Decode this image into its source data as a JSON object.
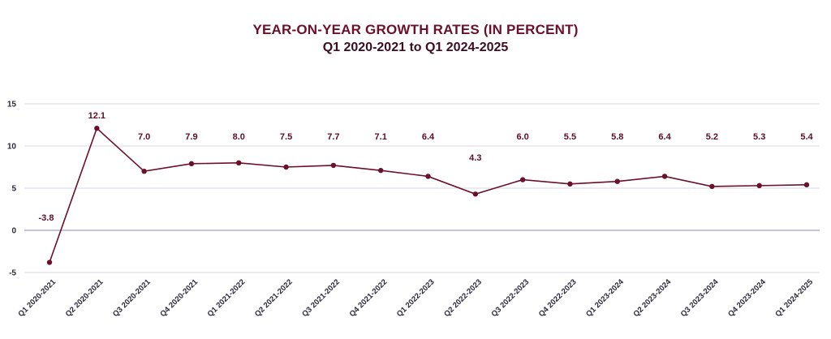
{
  "chart_data": {
    "type": "line",
    "title": "YEAR-ON-YEAR GROWTH RATES (IN PERCENT)",
    "subtitle": "Q1 2020-2021 to Q1 2024-2025",
    "categories": [
      "Q1 2020-2021",
      "Q2 2020-2021",
      "Q3 2020-2021",
      "Q4 2020-2021",
      "Q1 2021-2022",
      "Q2 2021-2022",
      "Q3 2021-2022",
      "Q4 2021-2022",
      "Q1 2022-2023",
      "Q2 2022-2023",
      "Q3 2022-2023",
      "Q4 2022-2023",
      "Q1 2023-2024",
      "Q2 2023-2024",
      "Q3 2023-2024",
      "Q4 2023-2024",
      "Q1 2024-2025"
    ],
    "series": [
      {
        "values": [
          -3.8,
          12.1,
          7.0,
          7.9,
          8.0,
          7.5,
          7.7,
          7.1,
          6.4,
          4.3,
          6.0,
          5.5,
          5.8,
          6.4,
          5.2,
          5.3,
          5.4
        ]
      }
    ],
    "value_labels": [
      "-3.8",
      "12.1",
      "7.0",
      "7.9",
      "8.0",
      "7.5",
      "7.7",
      "7.1",
      "6.4",
      "4.3",
      "6.0",
      "5.5",
      "5.8",
      "6.4",
      "5.2",
      "5.3",
      "5.4"
    ],
    "ylim": [
      -5,
      15
    ],
    "yticks": [
      15,
      10,
      5,
      0,
      -5
    ],
    "grid": true,
    "line_color": "#6b0f2a",
    "grid_color": "#d7d7e6",
    "zero_line_color": "#8b89b8"
  }
}
